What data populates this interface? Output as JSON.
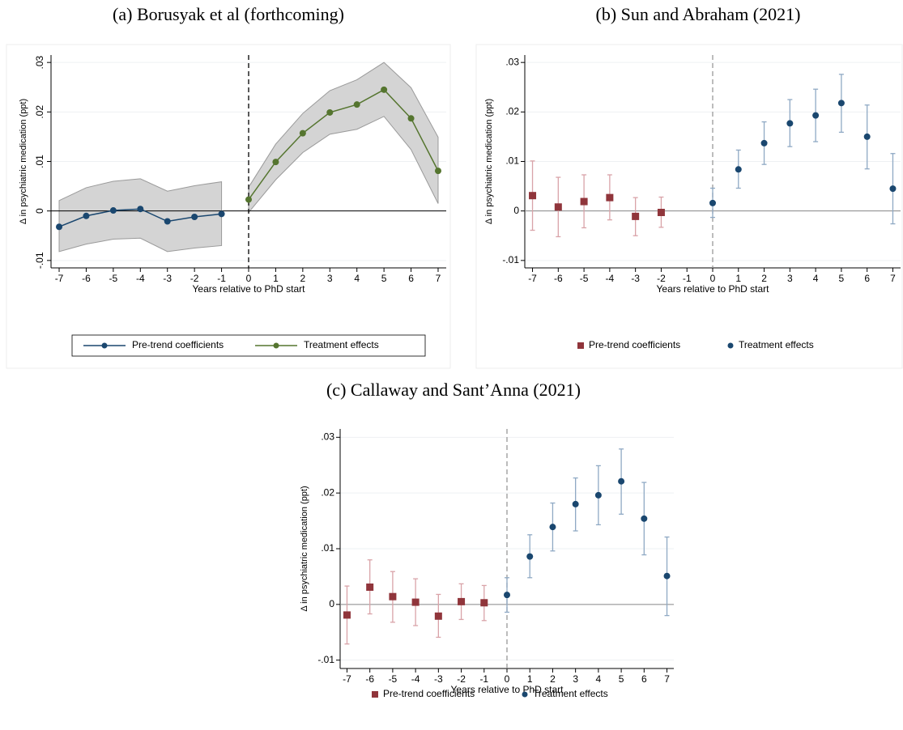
{
  "chart_data": [
    {
      "type": "line",
      "title": "(a) Borusyak et al (forthcoming)",
      "x_label": "Years relative to PhD start",
      "y_label": "Δ in psychiatric medication (ppt)",
      "xlim": [
        -7.3,
        7.3
      ],
      "xticks": [
        -7,
        -6,
        -5,
        -4,
        -3,
        -2,
        -1,
        0,
        1,
        2,
        3,
        4,
        5,
        6,
        7
      ],
      "ylim": [
        -0.0115,
        0.0315
      ],
      "yticks": [
        {
          "value": -0.01,
          "label": "-.01"
        },
        0,
        {
          "value": 0.01,
          "label": ".01"
        },
        {
          "value": 0.02,
          "label": ".02"
        },
        {
          "value": 0.03,
          "label": ".03"
        }
      ],
      "ytick_labels_vertical": true,
      "grid": true,
      "hline": 0,
      "hline_color": "#000000",
      "vline": 0,
      "vline_color": "#000000",
      "band_color": "#d4d4d4",
      "legend": "bottom",
      "series": [
        {
          "name": "Pre-trend coefficients",
          "color": "#1a476f",
          "marker": "circle",
          "x": [
            -7,
            -6,
            -5,
            -4,
            -3,
            -2,
            -1
          ],
          "values": [
            -0.0032,
            -0.001,
            0.0001,
            0.0004,
            -0.0021,
            -0.0012,
            -0.0006
          ],
          "lower": [
            -0.0082,
            -0.0067,
            -0.0057,
            -0.0055,
            -0.0082,
            -0.0075,
            -0.007
          ],
          "upper": [
            0.0021,
            0.0047,
            0.006,
            0.0065,
            0.004,
            0.0051,
            0.0059
          ]
        },
        {
          "name": "Treatment effects",
          "color": "#55752f",
          "marker": "circle",
          "x": [
            0,
            1,
            2,
            3,
            4,
            5,
            6,
            7
          ],
          "values": [
            0.0023,
            0.0099,
            0.0157,
            0.0199,
            0.0215,
            0.0245,
            0.0187,
            0.0081
          ],
          "lower": [
            -0.0003,
            0.0063,
            0.0118,
            0.0155,
            0.0165,
            0.0191,
            0.0124,
            0.0015
          ],
          "upper": [
            0.0048,
            0.0135,
            0.0197,
            0.0243,
            0.0265,
            0.03,
            0.0249,
            0.0149
          ]
        }
      ]
    },
    {
      "type": "scatter",
      "title": "(b) Sun and Abraham (2021)",
      "x_label": "Years relative to PhD start",
      "y_label": "Δ in psychiatric medication (ppt)",
      "xlim": [
        -7.3,
        7.3
      ],
      "xticks": [
        -7,
        -6,
        -5,
        -4,
        -3,
        -2,
        -1,
        0,
        1,
        2,
        3,
        4,
        5,
        6,
        7
      ],
      "ylim": [
        -0.0115,
        0.0315
      ],
      "yticks": [
        {
          "value": -0.01,
          "label": "-.01"
        },
        0,
        {
          "value": 0.01,
          "label": ".01"
        },
        {
          "value": 0.02,
          "label": ".02"
        },
        {
          "value": 0.03,
          "label": ".03"
        }
      ],
      "ytick_labels_vertical": false,
      "grid": true,
      "hline": 0,
      "hline_color": "#888888",
      "vline": 0,
      "vline_color": "#999999",
      "legend": "bottom",
      "series": [
        {
          "name": "Pre-trend coefficients",
          "color": "#90353b",
          "ci_color": "#d9a3a8",
          "marker": "square",
          "x": [
            -7,
            -6,
            -5,
            -4,
            -3,
            -2
          ],
          "values": [
            0.0031,
            0.0008,
            0.0019,
            0.0027,
            -0.0011,
            -0.0003
          ],
          "lower": [
            -0.0039,
            -0.0052,
            -0.0034,
            -0.0018,
            -0.005,
            -0.0033
          ],
          "upper": [
            0.0101,
            0.0068,
            0.0073,
            0.0073,
            0.0027,
            0.0028
          ]
        },
        {
          "name": "Treatment effects",
          "color": "#1a476f",
          "ci_color": "#8fa9c4",
          "marker": "circle",
          "x": [
            0,
            1,
            2,
            3,
            4,
            5,
            6,
            7
          ],
          "values": [
            0.0016,
            0.0084,
            0.0137,
            0.0177,
            0.0193,
            0.0218,
            0.015,
            0.0045
          ],
          "lower": [
            -0.0013,
            0.0046,
            0.0094,
            0.013,
            0.014,
            0.0159,
            0.0085,
            -0.0026
          ],
          "upper": [
            0.0046,
            0.0123,
            0.018,
            0.0225,
            0.0246,
            0.0276,
            0.0214,
            0.0116
          ]
        }
      ]
    },
    {
      "type": "scatter",
      "title": "(c) Callaway and Sant’Anna (2021)",
      "x_label": "Years relative to PhD start",
      "y_label": "Δ in psychiatric medication (ppt)",
      "xlim": [
        -7.3,
        7.3
      ],
      "xticks": [
        -7,
        -6,
        -5,
        -4,
        -3,
        -2,
        -1,
        0,
        1,
        2,
        3,
        4,
        5,
        6,
        7
      ],
      "ylim": [
        -0.0115,
        0.0315
      ],
      "yticks": [
        {
          "value": -0.01,
          "label": "-.01"
        },
        0,
        {
          "value": 0.01,
          "label": ".01"
        },
        {
          "value": 0.02,
          "label": ".02"
        },
        {
          "value": 0.03,
          "label": ".03"
        }
      ],
      "ytick_labels_vertical": false,
      "grid": true,
      "hline": 0,
      "hline_color": "#888888",
      "vline": 0,
      "vline_color": "#999999",
      "legend": "bottom",
      "series": [
        {
          "name": "Pre-trend coefficients",
          "color": "#90353b",
          "ci_color": "#d9a3a8",
          "marker": "square",
          "x": [
            -7,
            -6,
            -5,
            -4,
            -3,
            -2,
            -1
          ],
          "values": [
            -0.0019,
            0.0031,
            0.0014,
            0.0004,
            -0.0021,
            0.0005,
            0.0003
          ],
          "lower": [
            -0.0071,
            -0.0017,
            -0.0032,
            -0.0038,
            -0.0059,
            -0.0027,
            -0.0029
          ],
          "upper": [
            0.0033,
            0.008,
            0.0059,
            0.0046,
            0.0018,
            0.0037,
            0.0034
          ]
        },
        {
          "name": "Treatment effects",
          "color": "#1a476f",
          "ci_color": "#8fa9c4",
          "marker": "circle",
          "x": [
            0,
            1,
            2,
            3,
            4,
            5,
            6,
            7
          ],
          "values": [
            0.0017,
            0.0086,
            0.0139,
            0.018,
            0.0196,
            0.0221,
            0.0154,
            0.0051
          ],
          "lower": [
            -0.0014,
            0.0048,
            0.0096,
            0.0132,
            0.0143,
            0.0162,
            0.0089,
            -0.002
          ],
          "upper": [
            0.0048,
            0.0125,
            0.0182,
            0.0227,
            0.0249,
            0.0279,
            0.0219,
            0.0121
          ]
        }
      ]
    }
  ]
}
